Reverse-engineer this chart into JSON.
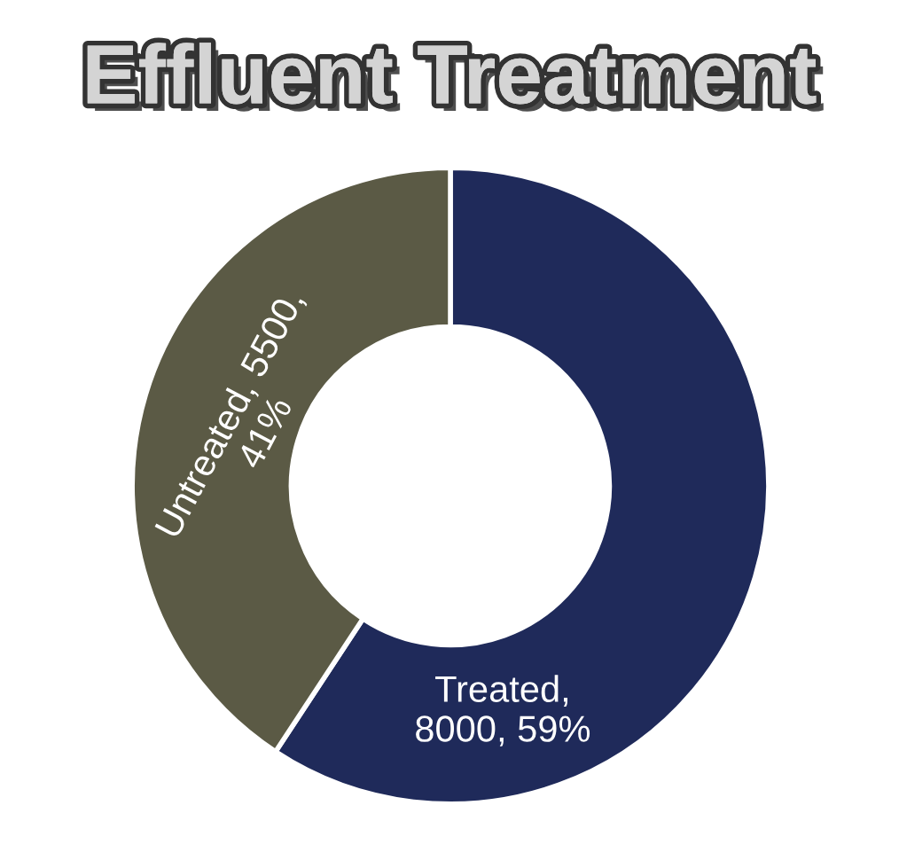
{
  "chart_data": {
    "type": "donut",
    "title": "Effluent Treatment",
    "categories": [
      "Treated",
      "Untreated"
    ],
    "values": [
      8000,
      5500
    ],
    "colors": [
      "#1f2a5a",
      "#5b5a45"
    ],
    "value_labels": [
      ",\n8000, 59%",
      ", 5500,\n41%"
    ],
    "legend": false
  }
}
